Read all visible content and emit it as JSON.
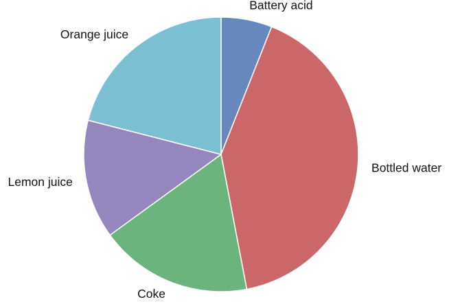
{
  "chart_data": {
    "type": "pie",
    "title": "",
    "start_angle_deg": 90,
    "direction": "clockwise",
    "legend": "none",
    "slices": [
      {
        "label": "Battery acid",
        "value": 6,
        "color": "#6788BD"
      },
      {
        "label": "Bottled water",
        "value": 41,
        "color": "#CC6769"
      },
      {
        "label": "Coke",
        "value": 18,
        "color": "#6CB47E"
      },
      {
        "label": "Lemon juice",
        "value": 14,
        "color": "#9587BD"
      },
      {
        "label": "Orange juice",
        "value": 21,
        "color": "#7ABFD2"
      }
    ]
  }
}
